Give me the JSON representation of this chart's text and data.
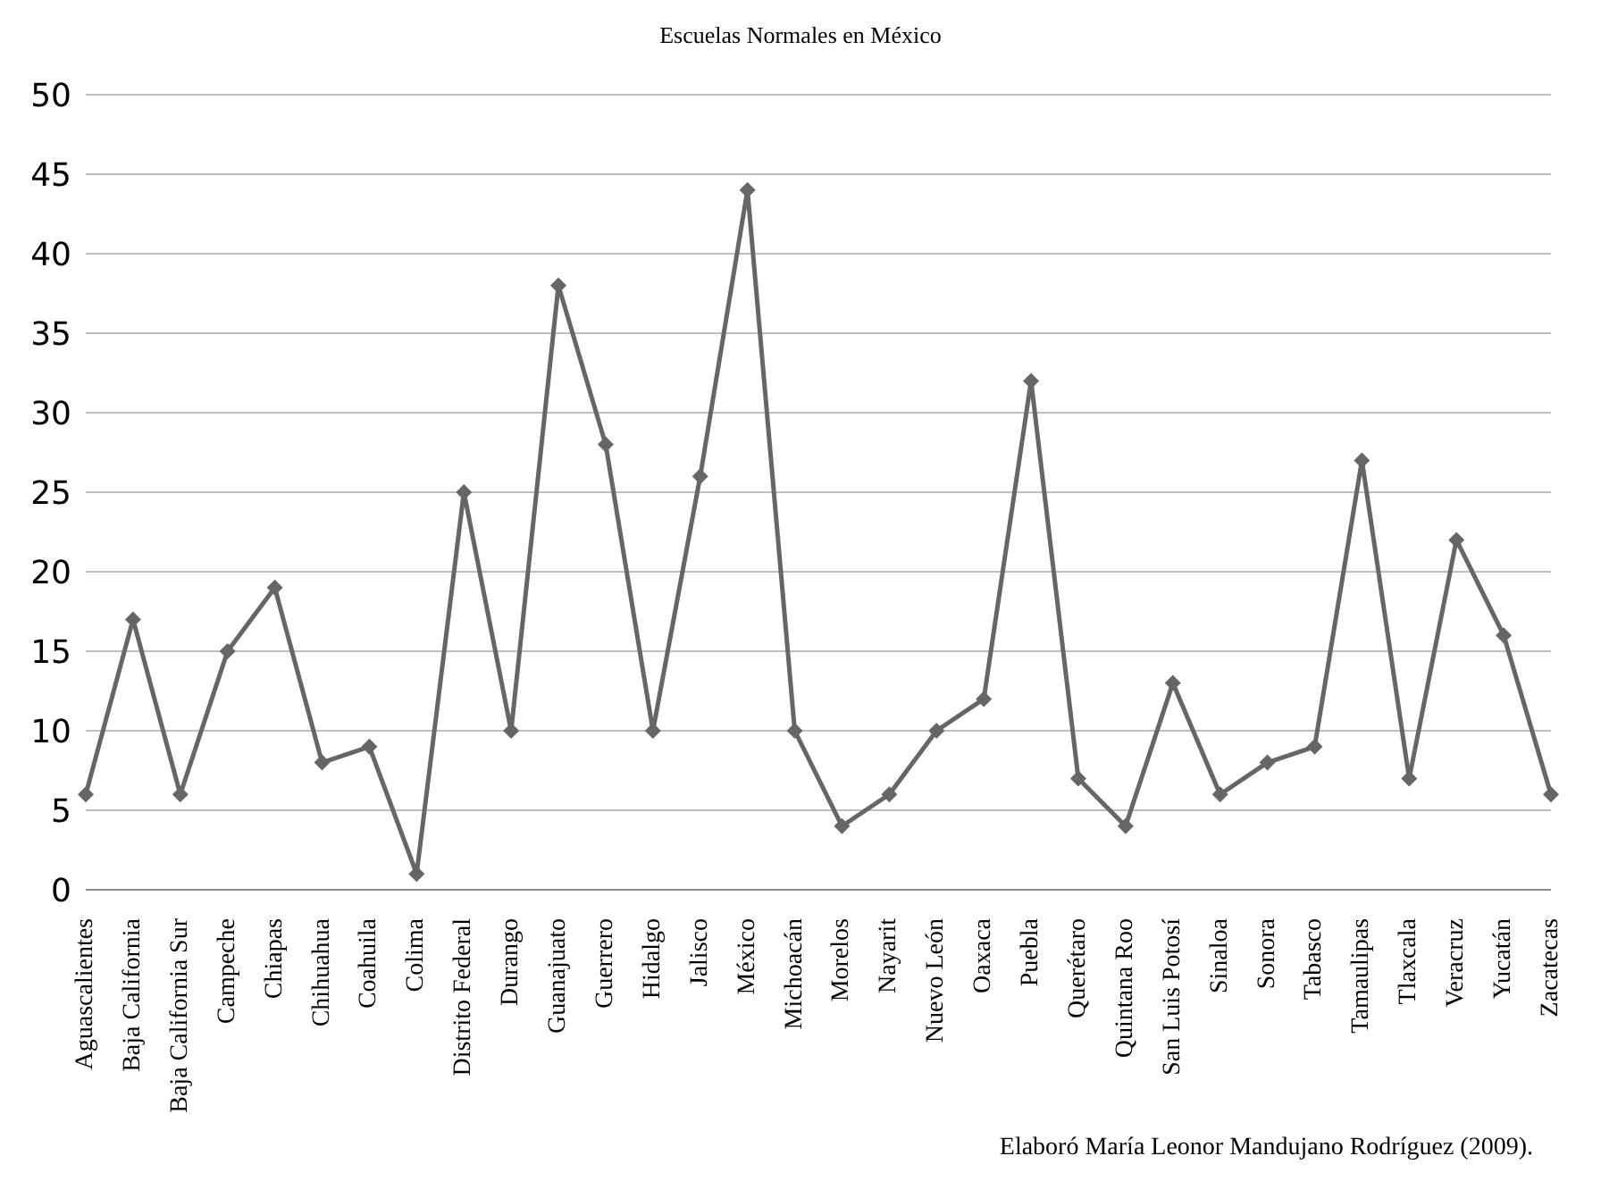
{
  "chart_data": {
    "type": "line",
    "title": "Escuelas Normales en México",
    "categories": [
      "Aguascalientes",
      "Baja California",
      "Baja California Sur",
      "Campeche",
      "Chiapas",
      "Chihuahua",
      "Coahuila",
      "Colima",
      "Distrito Federal",
      "Durango",
      "Guanajuato",
      "Guerrero",
      "Hidalgo",
      "Jalisco",
      "México",
      "Michoacán",
      "Morelos",
      "Nayarit",
      "Nuevo León",
      "Oaxaca",
      "Puebla",
      "Querétaro",
      "Quintana Roo",
      "San Luis Potosí",
      "Sinaloa",
      "Sonora",
      "Tabasco",
      "Tamaulipas",
      "Tlaxcala",
      "Veracruz",
      "Yucatán",
      "Zacatecas"
    ],
    "series": [
      {
        "color": "#666666",
        "values": [
          6,
          17,
          6,
          15,
          19,
          8,
          9,
          1,
          25,
          10,
          38,
          28,
          10,
          26,
          44,
          10,
          4,
          6,
          10,
          12,
          32,
          7,
          4,
          13,
          6,
          8,
          9,
          27,
          7,
          22,
          16,
          6
        ]
      }
    ],
    "ylim": [
      0,
      50
    ],
    "yticks": [
      0,
      5,
      10,
      15,
      20,
      25,
      30,
      35,
      40,
      45,
      50
    ],
    "grid": "y",
    "marker": "diamond",
    "line_style": "solid",
    "annotations": [
      "Elaboró María Leonor Mandujano Rodríguez (2009)."
    ]
  }
}
